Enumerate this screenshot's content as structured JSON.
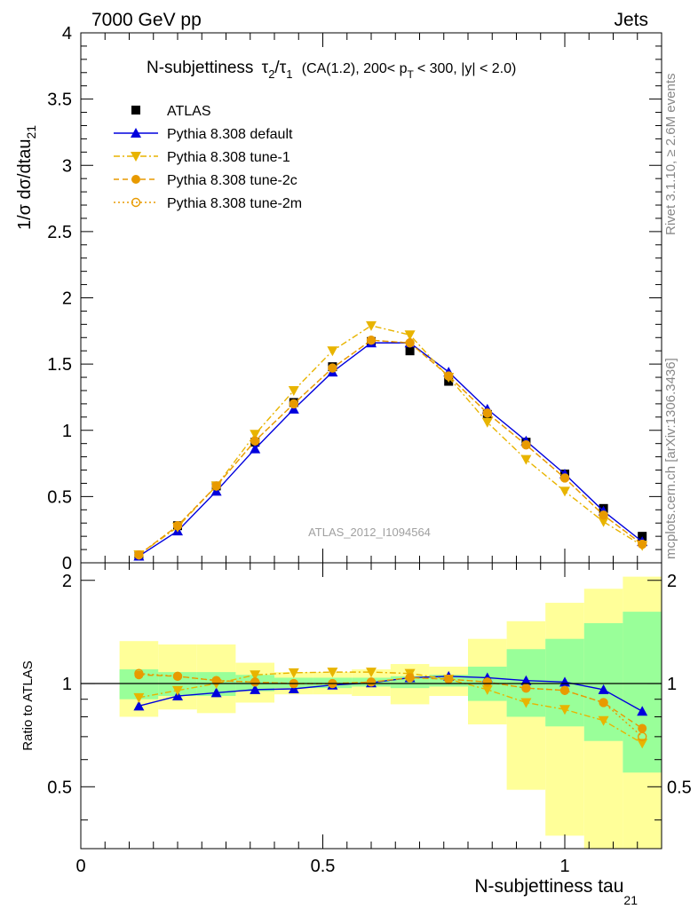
{
  "header": {
    "left": "7000 GeV pp",
    "right": "Jets"
  },
  "side_labels": {
    "rivet": "Rivet 3.1.10, ≥ 2.6M events",
    "mcplots": "mcplots.cern.ch [arXiv:1306.3436]"
  },
  "watermark": "ATLAS_2012_I1094564",
  "chart_data": [
    {
      "type": "line",
      "panel": "main",
      "title_parts": {
        "prefix": "N-subjettiness",
        "tau": "τ",
        "sub2": "2",
        "slash": "/",
        "sub1": "1",
        "rest": "(CA(1.2), 200< p",
        "pt_sub": "T",
        "tail": "< 300, |y| < 2.0)"
      },
      "ylabel_parts": {
        "main": "1/σ dσ/dtau",
        "sub": "21"
      },
      "xlim": [
        0,
        1.2
      ],
      "ylim": [
        0,
        4
      ],
      "x": [
        0.12,
        0.2,
        0.28,
        0.36,
        0.44,
        0.52,
        0.6,
        0.68,
        0.76,
        0.84,
        0.92,
        1.0,
        1.08,
        1.16
      ],
      "x_tick_labels": [
        "0",
        "0.5",
        "1"
      ],
      "y_tick_labels": [
        "0",
        "0.5",
        "1",
        "1.5",
        "2",
        "2.5",
        "3",
        "3.5",
        "4"
      ],
      "series": [
        {
          "name": "ATLAS",
          "color": "#000000",
          "marker": "square",
          "line": "none",
          "values": [
            0.06,
            0.28,
            0.58,
            0.91,
            1.21,
            1.48,
            1.67,
            1.6,
            1.37,
            1.12,
            0.91,
            0.67,
            0.41,
            0.2
          ]
        },
        {
          "name": "Pythia 8.308 default",
          "color": "#0000dd",
          "marker": "triangle-up",
          "line": "solid",
          "values": [
            0.05,
            0.24,
            0.54,
            0.86,
            1.16,
            1.44,
            1.66,
            1.66,
            1.44,
            1.16,
            0.92,
            0.67,
            0.39,
            0.16
          ]
        },
        {
          "name": "Pythia 8.308 tune-1",
          "color": "#e8b400",
          "marker": "triangle-down",
          "line": "dashdot",
          "values": [
            0.06,
            0.27,
            0.58,
            0.97,
            1.3,
            1.6,
            1.79,
            1.72,
            1.4,
            1.06,
            0.78,
            0.54,
            0.31,
            0.13
          ]
        },
        {
          "name": "Pythia 8.308 tune-2c",
          "color": "#e89a00",
          "marker": "circle",
          "line": "dashed",
          "values": [
            0.06,
            0.28,
            0.58,
            0.92,
            1.2,
            1.47,
            1.68,
            1.66,
            1.41,
            1.13,
            0.89,
            0.64,
            0.36,
            0.14
          ]
        },
        {
          "name": "Pythia 8.308 tune-2m",
          "color": "#e89a00",
          "marker": "circle-open",
          "line": "dotted",
          "values": [
            0.06,
            0.28,
            0.58,
            0.92,
            1.2,
            1.47,
            1.68,
            1.66,
            1.41,
            1.13,
            0.89,
            0.64,
            0.36,
            0.14
          ]
        }
      ]
    },
    {
      "type": "line",
      "panel": "ratio",
      "ylabel": "Ratio to ATLAS",
      "xlabel_parts": {
        "main": "N-subjettiness tau",
        "sub": "21"
      },
      "xlim": [
        0,
        1.2
      ],
      "ylim": [
        0.33,
        2.25
      ],
      "x_tick_labels": [
        "0",
        "0.5",
        "1"
      ],
      "y_tick_labels": [
        "0.5",
        "1",
        "2"
      ],
      "y_tick_values": [
        0.5,
        1,
        2
      ],
      "bin_edges": [
        0.08,
        0.16,
        0.24,
        0.32,
        0.4,
        0.48,
        0.56,
        0.64,
        0.72,
        0.8,
        0.88,
        0.96,
        1.04,
        1.12,
        1.2
      ],
      "band_inner": {
        "color": "#99ff99",
        "low": [
          0.9,
          0.92,
          0.92,
          0.95,
          0.97,
          0.97,
          0.98,
          0.97,
          0.98,
          0.89,
          0.8,
          0.75,
          0.68,
          0.55
        ],
        "high": [
          1.1,
          1.08,
          1.08,
          1.06,
          1.04,
          1.04,
          1.04,
          1.05,
          1.06,
          1.12,
          1.26,
          1.35,
          1.5,
          1.62
        ]
      },
      "band_outer": {
        "color": "#ffff99",
        "low": [
          0.8,
          0.84,
          0.82,
          0.88,
          0.93,
          0.93,
          0.92,
          0.87,
          0.92,
          0.76,
          0.49,
          0.36,
          0.33,
          0.33
        ],
        "high": [
          1.33,
          1.3,
          1.3,
          1.15,
          1.08,
          1.08,
          1.1,
          1.14,
          1.12,
          1.35,
          1.52,
          1.72,
          1.89,
          2.05
        ]
      },
      "series": [
        {
          "name": "Pythia 8.308 default",
          "color": "#0000dd",
          "marker": "triangle-up",
          "line": "solid",
          "values": [
            0.86,
            0.92,
            0.94,
            0.96,
            0.965,
            0.99,
            1.005,
            1.04,
            1.05,
            1.04,
            1.02,
            1.01,
            0.96,
            0.83
          ]
        },
        {
          "name": "Pythia 8.308 tune-1",
          "color": "#e8b400",
          "marker": "triangle-down",
          "line": "dashdot",
          "values": [
            0.91,
            0.955,
            1.0,
            1.06,
            1.075,
            1.08,
            1.08,
            1.07,
            1.03,
            0.96,
            0.88,
            0.84,
            0.78,
            0.67
          ]
        },
        {
          "name": "Pythia 8.308 tune-2c",
          "color": "#e89a00",
          "marker": "circle",
          "line": "dashed",
          "values": [
            1.06,
            1.05,
            1.02,
            1.01,
            1.0,
            1.0,
            1.01,
            1.04,
            1.03,
            1.01,
            0.97,
            0.955,
            0.88,
            0.74
          ]
        },
        {
          "name": "Pythia 8.308 tune-2m",
          "color": "#e89a00",
          "marker": "circle-open",
          "line": "dotted",
          "values": [
            1.07,
            1.05,
            1.02,
            1.01,
            1.0,
            1.0,
            1.01,
            1.04,
            1.03,
            1.01,
            0.97,
            0.955,
            0.88,
            0.7
          ]
        }
      ]
    }
  ]
}
